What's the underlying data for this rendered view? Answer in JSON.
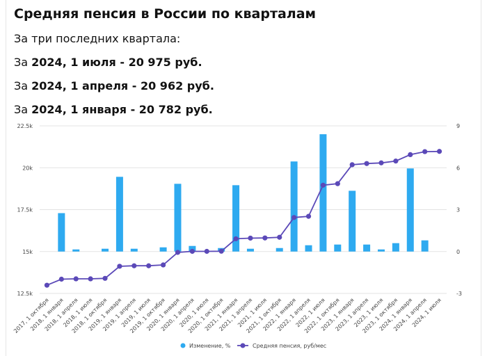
{
  "header": {
    "title": "Средняя пенсия в России по кварталам",
    "subtitle": "За три последних квартала:",
    "lines": [
      {
        "prefix": "За ",
        "bold": "2024, 1 июля - 20 975 руб."
      },
      {
        "prefix": "За ",
        "bold": "2024, 1 апреля - 20 962 руб."
      },
      {
        "prefix": "За ",
        "bold": "2024, 1 января - 20 782 руб."
      }
    ]
  },
  "chart_data": {
    "type": "bar+line",
    "categories": [
      "2017, 1 октября",
      "2018, 1 января",
      "2018, 1 апреля",
      "2018, 1 июля",
      "2018, 1 октября",
      "2019, 1 января",
      "2019, 1 апреля",
      "2019, 1 июля",
      "2019, 1 октября",
      "2020, 1 января",
      "2020, 1 апреля",
      "2020, 1 июля",
      "2020, 1 октября",
      "2021, 1 января",
      "2021, 1 апреля",
      "2021, 1 июля",
      "2021, 1 октября",
      "2022, 1 января",
      "2022, 1 апреля",
      "2022, 1 июля",
      "2022, 1 октября",
      "2023, 1 января",
      "2023, 1 апреля",
      "2023, 1 июля",
      "2023, 1 октября",
      "2024, 1 января",
      "2024, 1 апреля",
      "2024, 1 июля"
    ],
    "series": [
      {
        "name": "Изменение, %",
        "kind": "bar",
        "axis": "right",
        "color": "#2eaaf0",
        "values": [
          null,
          2.75,
          0.15,
          0.0,
          0.2,
          5.35,
          0.2,
          0.0,
          0.3,
          4.85,
          0.4,
          0.0,
          0.25,
          4.75,
          0.2,
          0.0,
          0.25,
          6.45,
          0.45,
          8.4,
          0.5,
          4.35,
          0.5,
          0.15,
          0.6,
          5.95,
          0.8,
          0.0
        ]
      },
      {
        "name": "Средняя пенсия, руб/мес",
        "kind": "line",
        "axis": "left",
        "color": "#5b49b8",
        "values": [
          12990,
          13350,
          13370,
          13370,
          13400,
          14120,
          14150,
          14150,
          14200,
          14950,
          15010,
          15010,
          15020,
          15760,
          15800,
          15810,
          15850,
          17030,
          17100,
          18960,
          19050,
          20180,
          20250,
          20290,
          20400,
          20782,
          20962,
          20975
        ]
      }
    ],
    "y_left": {
      "min": 12500,
      "max": 22500,
      "ticks": [
        "12.5k",
        "15k",
        "17.5k",
        "20k",
        "22.5k"
      ],
      "tick_values": [
        12500,
        15000,
        17500,
        20000,
        22500
      ]
    },
    "y_right": {
      "min": -3,
      "max": 9,
      "ticks": [
        "-3",
        "0",
        "3",
        "6",
        "9"
      ],
      "tick_values": [
        -3,
        0,
        3,
        6,
        9
      ]
    },
    "grid": true,
    "legend_position": "bottom"
  }
}
